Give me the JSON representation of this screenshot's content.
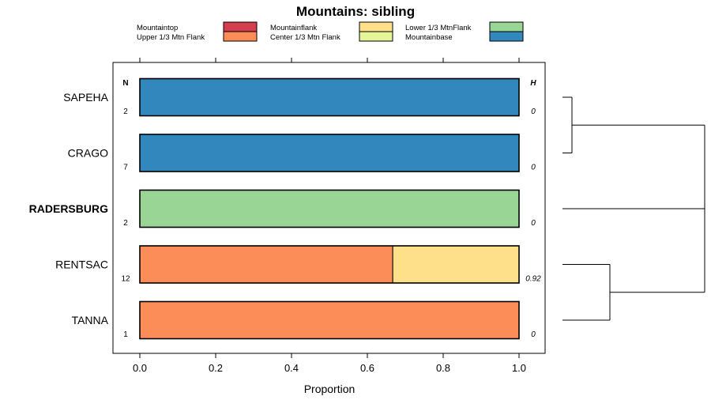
{
  "chart_data": {
    "type": "bar",
    "orientation": "horizontal",
    "stacked": true,
    "title": "Mountains: sibling",
    "xlabel": "Proportion",
    "ylabel": "",
    "xlim": [
      0,
      1
    ],
    "x_ticks": [
      "0.0",
      "0.2",
      "0.4",
      "0.6",
      "0.8",
      "1.0"
    ],
    "n_header": "N",
    "h_header": "H",
    "legend": [
      {
        "label": "Mountaintop",
        "color": "#d53e4f"
      },
      {
        "label": "Upper 1/3 Mtn Flank",
        "color": "#fc8d59"
      },
      {
        "label": "Mountainflank",
        "color": "#fee08b"
      },
      {
        "label": "Center 1/3 Mtn Flank",
        "color": "#e6f598"
      },
      {
        "label": "Lower 1/3 MtnFlank",
        "color": "#99d594"
      },
      {
        "label": "Mountainbase",
        "color": "#3288bd"
      }
    ],
    "categories": [
      "SAPEHA",
      "CRAGO",
      "RADERSBURG",
      "RENTSAC",
      "TANNA"
    ],
    "highlighted": "RADERSBURG",
    "n_values": [
      "2",
      "7",
      "2",
      "12",
      "1"
    ],
    "h_values": [
      "0",
      "0",
      "0",
      "0.92",
      "0"
    ],
    "series": [
      {
        "name": "Mountaintop",
        "values": [
          0,
          0,
          0,
          0,
          0
        ]
      },
      {
        "name": "Upper 1/3 Mtn Flank",
        "values": [
          0,
          0,
          0,
          0.667,
          1
        ]
      },
      {
        "name": "Mountainflank",
        "values": [
          0,
          0,
          0,
          0.333,
          0
        ]
      },
      {
        "name": "Center 1/3 Mtn Flank",
        "values": [
          0,
          0,
          0,
          0,
          0
        ]
      },
      {
        "name": "Lower 1/3 MtnFlank",
        "values": [
          0,
          0,
          1,
          0,
          0
        ]
      },
      {
        "name": "Mountainbase",
        "values": [
          1,
          1,
          0,
          0,
          0
        ]
      }
    ],
    "dendrogram": "((SAPEHA, CRAGO), RADERSBURG, (RENTSAC, TANNA))"
  }
}
